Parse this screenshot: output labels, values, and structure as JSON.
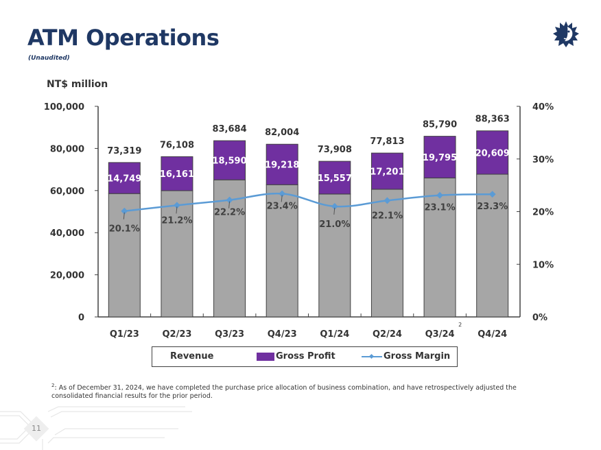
{
  "header": {
    "title": "ATM Operations",
    "subtitle": "(Unaudited)",
    "unit_label": "NT$ million",
    "logo_icon": "sun-face-logo-icon"
  },
  "legend": {
    "revenue": "Revenue",
    "gross_profit": "Gross Profit",
    "gross_margin": "Gross Margin"
  },
  "footnote": {
    "marker": "2",
    "text": ": As of December 31, 2024, we have completed the purchase price allocation of business combination, and have retrospectively adjusted the consolidated financial results for the prior period."
  },
  "page_number": "11",
  "colors": {
    "title": "#1f3864",
    "revenue_bar": "#a6a6a6",
    "gross_profit_bar": "#7030a0",
    "gross_margin_line": "#5b9bd5",
    "axis": "#404040"
  },
  "chart_data": {
    "type": "bar",
    "title": "ATM Operations",
    "ylabel": "NT$ million",
    "categories": [
      "Q1/23",
      "Q2/23",
      "Q3/23",
      "Q4/23",
      "Q1/24",
      "Q2/24",
      "Q3/24",
      "Q4/24"
    ],
    "category_superscripts": [
      "",
      "",
      "",
      "",
      "",
      "",
      "2",
      ""
    ],
    "series": [
      {
        "name": "Revenue",
        "type": "bar",
        "axis": "left",
        "values": [
          73319,
          76108,
          83684,
          82004,
          73908,
          77813,
          85790,
          88363
        ],
        "labels": [
          "73,319",
          "76,108",
          "83,684",
          "82,004",
          "73,908",
          "77,813",
          "85,790",
          "88,363"
        ]
      },
      {
        "name": "Gross Profit",
        "type": "bar",
        "axis": "left",
        "values": [
          14749,
          16161,
          18590,
          19218,
          15557,
          17201,
          19795,
          20609
        ],
        "labels": [
          "14,749",
          "16,161",
          "18,590",
          "19,218",
          "15,557",
          "17,201",
          "19,795",
          "20,609"
        ]
      },
      {
        "name": "Gross Margin",
        "type": "line",
        "axis": "right",
        "values": [
          20.1,
          21.2,
          22.2,
          23.4,
          21.0,
          22.1,
          23.1,
          23.3
        ],
        "labels": [
          "20.1%",
          "21.2%",
          "22.2%",
          "23.4%",
          "21.0%",
          "22.1%",
          "23.1%",
          "23.3%"
        ]
      }
    ],
    "y_left": {
      "min": 0,
      "max": 100000,
      "ticks": [
        0,
        20000,
        40000,
        60000,
        80000,
        100000
      ],
      "tick_labels": [
        "0",
        "20,000",
        "40,000",
        "60,000",
        "80,000",
        "100,000"
      ]
    },
    "y_right": {
      "min": 0,
      "max": 40,
      "ticks": [
        0,
        10,
        20,
        30,
        40
      ],
      "tick_labels": [
        "0%",
        "10%",
        "20%",
        "30%",
        "40%"
      ]
    },
    "grid": false,
    "legend_position": "bottom"
  }
}
